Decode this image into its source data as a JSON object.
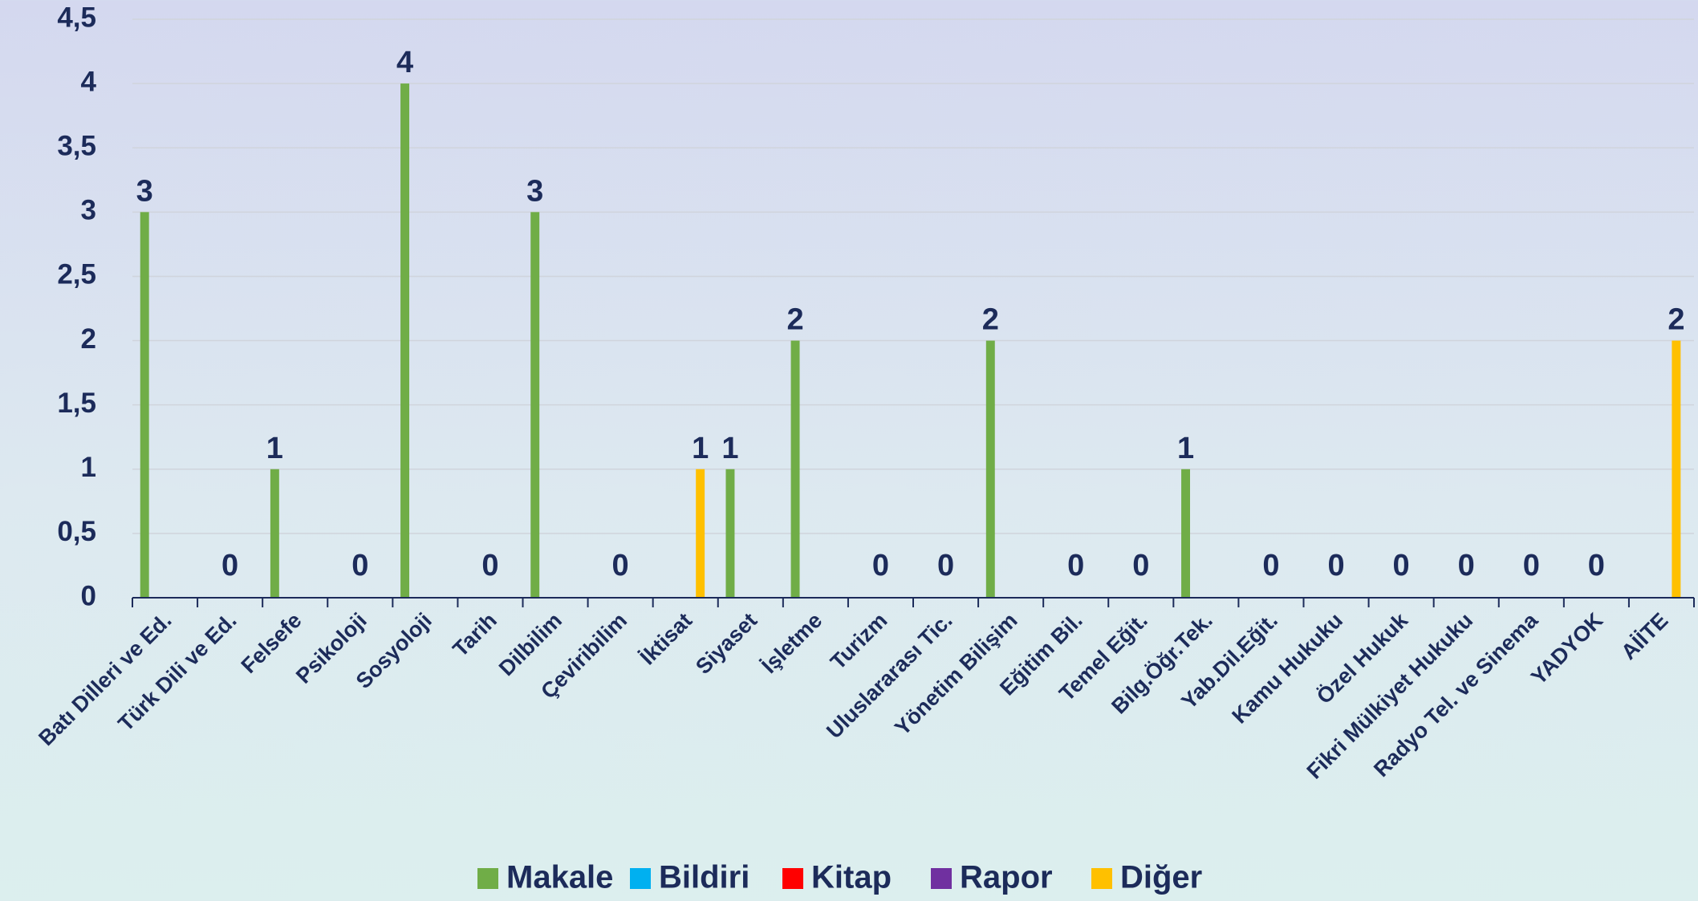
{
  "chart_data": {
    "type": "bar",
    "categories": [
      "Batı Dilleri ve Ed.",
      "Türk Dili ve Ed.",
      "Felsefe",
      "Psikoloji",
      "Sosyoloji",
      "Tarih",
      "Dilbilim",
      "Çeviribilim",
      "İktisat",
      "Siyaset",
      "İşletme",
      "Turizm",
      "Uluslararası Tic.",
      "Yönetim Bilişim",
      "Eğitim Bil.",
      "Temel Eğit.",
      "Bilg.Öğr.Tek.",
      "Yab.Dil.Eğit.",
      "Kamu Hukuku",
      "Özel Hukuk",
      "Fikri Mülkiyet Hukuku",
      "Radyo Tel. ve Sinema",
      "YADYOK",
      "AİİTE"
    ],
    "series": [
      {
        "name": "Makale",
        "color": "#70ad47",
        "values": [
          3,
          0,
          1,
          0,
          4,
          0,
          3,
          0,
          0,
          1,
          2,
          0,
          0,
          2,
          0,
          0,
          1,
          0,
          0,
          0,
          0,
          0,
          0,
          0
        ]
      },
      {
        "name": "Bildiri",
        "color": "#00b0f0",
        "values": [
          0,
          0,
          0,
          0,
          0,
          0,
          0,
          0,
          0,
          0,
          0,
          0,
          0,
          0,
          0,
          0,
          0,
          0,
          0,
          0,
          0,
          0,
          0,
          0
        ]
      },
      {
        "name": "Kitap",
        "color": "#ff0000",
        "values": [
          0,
          0,
          0,
          0,
          0,
          0,
          0,
          0,
          0,
          0,
          0,
          0,
          0,
          0,
          0,
          0,
          0,
          0,
          0,
          0,
          0,
          0,
          0,
          0
        ]
      },
      {
        "name": "Rapor",
        "color": "#7030a0",
        "values": [
          0,
          0,
          0,
          0,
          0,
          0,
          0,
          0,
          0,
          0,
          0,
          0,
          0,
          0,
          0,
          0,
          0,
          0,
          0,
          0,
          0,
          0,
          0,
          0
        ]
      },
      {
        "name": "Diğer",
        "color": "#ffc000",
        "values": [
          0,
          0,
          0,
          0,
          0,
          0,
          0,
          0,
          1,
          0,
          0,
          0,
          0,
          0,
          0,
          0,
          0,
          0,
          0,
          0,
          0,
          0,
          0,
          2
        ]
      }
    ],
    "ylim": [
      0,
      4.5
    ],
    "yticks": [
      0,
      {
        "value": 0.5,
        "label": "0,5"
      },
      1,
      {
        "value": 1.5,
        "label": "1,5"
      },
      2,
      {
        "value": 2.5,
        "label": "2,5"
      },
      3,
      {
        "value": 3.5,
        "label": "3,5"
      },
      4,
      {
        "value": 4.5,
        "label": "4,5"
      }
    ],
    "grid": true,
    "legend": "bottom"
  }
}
